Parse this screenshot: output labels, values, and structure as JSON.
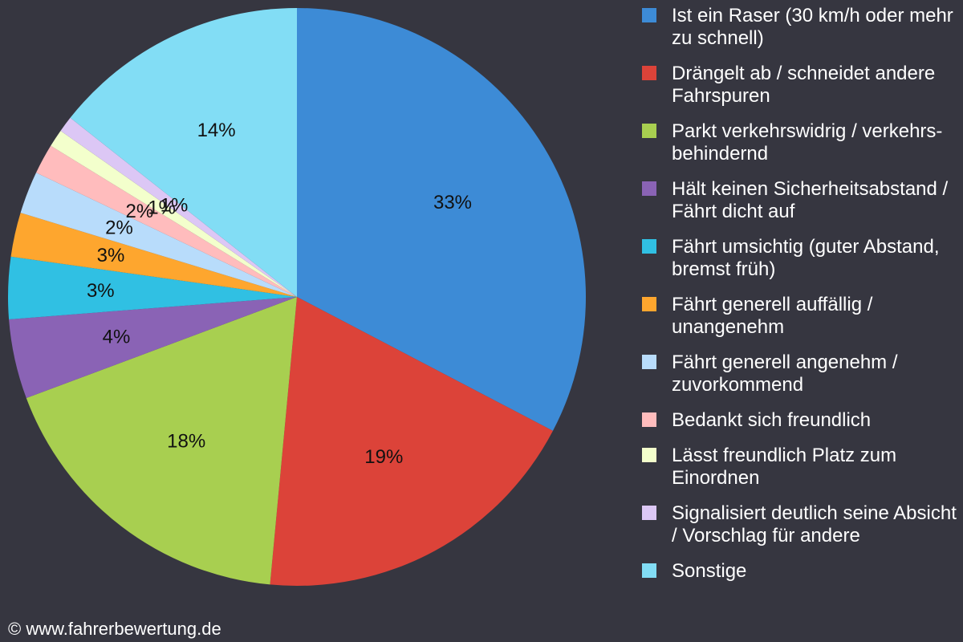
{
  "chart_data": {
    "type": "pie",
    "title": "",
    "legend_position": "right",
    "slices": [
      {
        "label": "Ist ein Raser (30 km/h oder mehr zu schnell)",
        "value": 33,
        "display": "33%",
        "color": "#3d8bd6"
      },
      {
        "label": "Drängelt ab / schneidet andere Fahrspuren",
        "value": 19,
        "display": "19%",
        "color": "#dc4339"
      },
      {
        "label": "Parkt verkehrswidrig / verkehrs-behindernd",
        "value": 18,
        "display": "18%",
        "color": "#a8cf50"
      },
      {
        "label": "Hält keinen Sicherheitsabstand / Fährt dicht auf",
        "value": 4.5,
        "display": "4%",
        "color": "#8a63b5"
      },
      {
        "label": "Fährt umsichtig (guter Abstand, bremst früh)",
        "value": 3.5,
        "display": "3%",
        "color": "#30c0e3"
      },
      {
        "label": "Fährt generell auffällig / unangenehm",
        "value": 2.5,
        "display": "3%",
        "color": "#fea62e"
      },
      {
        "label": "Fährt generell angenehm / zuvorkommend",
        "value": 2.4,
        "display": "2%",
        "color": "#b8dcfb"
      },
      {
        "label": "Bedankt sich freundlich",
        "value": 1.7,
        "display": "2%",
        "color": "#ffbcbd"
      },
      {
        "label": "Lässt freundlich Platz zum Einordnen",
        "value": 1.0,
        "display": "1%",
        "color": "#f3ffcc"
      },
      {
        "label": "Signalisiert deutlich seine Absicht / Vorschlag für andere",
        "value": 0.9,
        "display": "1%",
        "color": "#dcc7f5"
      },
      {
        "label": "Sonstige",
        "value": 14.5,
        "display": "14%",
        "color": "#82ddf5"
      }
    ]
  },
  "footer": {
    "copyright": "© www.fahrerbewertung.de"
  },
  "colors": {
    "background": "#363640",
    "text": "#ffffff",
    "label": "#111111"
  }
}
